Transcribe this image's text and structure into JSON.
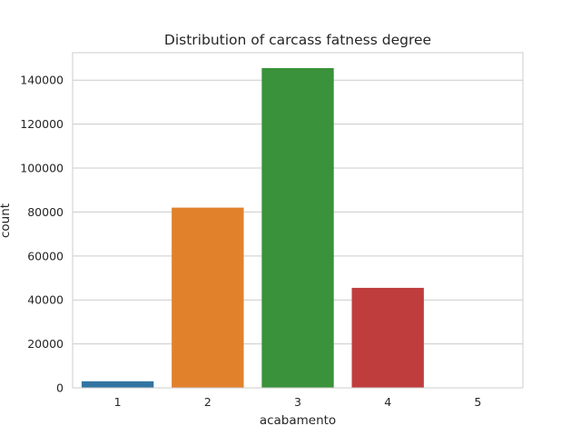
{
  "chart_data": {
    "type": "bar",
    "title": "Distribution of carcass fatness degree",
    "xlabel": "acabamento",
    "ylabel": "count",
    "categories": [
      "1",
      "2",
      "3",
      "4",
      "5"
    ],
    "values": [
      3000,
      82000,
      145500,
      45500,
      150
    ],
    "ylim": [
      0,
      152500
    ],
    "yticks": [
      0,
      20000,
      40000,
      60000,
      80000,
      100000,
      120000,
      140000
    ],
    "grid": true,
    "legend": "none",
    "colors": [
      "#3274a1",
      "#e1812c",
      "#3a923a",
      "#c03d3e",
      "#9372b2"
    ]
  }
}
